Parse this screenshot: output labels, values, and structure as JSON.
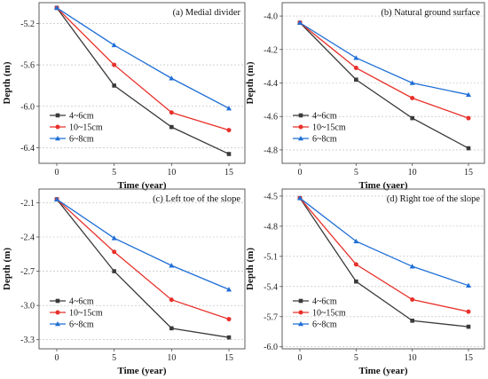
{
  "colors": {
    "series_4_6": "#3a3a3a",
    "series_10_15": "#e8302a",
    "series_6_8": "#1f6fd6",
    "frame": "#4d4d4d",
    "grid": "#b8b8b8"
  },
  "chart_data": [
    {
      "type": "line",
      "title": "(a) Medial divider",
      "xlabel": "Time (year)",
      "ylabel": "Depth (m)",
      "x": [
        0,
        5,
        10,
        15
      ],
      "xticks": [
        "0",
        "5",
        "10",
        "15"
      ],
      "ylim": [
        -6.55,
        -5.0
      ],
      "yticks": [
        "-5.2",
        "-5.6",
        "-6.0",
        "-6.4"
      ],
      "ytick_values": [
        -5.2,
        -5.6,
        -6.0,
        -6.4
      ],
      "grid": "horizontal dashed",
      "legend_position": "bottom-left",
      "series": [
        {
          "name": "4~6cm",
          "marker": "square",
          "values": [
            -5.05,
            -5.8,
            -6.2,
            -6.46
          ]
        },
        {
          "name": "10~15cm",
          "marker": "circle",
          "values": [
            -5.05,
            -5.6,
            -6.06,
            -6.23
          ]
        },
        {
          "name": "6~8cm",
          "marker": "triangle",
          "values": [
            -5.05,
            -5.41,
            -5.73,
            -6.02
          ]
        }
      ]
    },
    {
      "type": "line",
      "title": "(b) Natural ground surface",
      "xlabel": "Time (yaer)",
      "ylabel": "Depth (m)",
      "x": [
        0,
        5,
        10,
        15
      ],
      "xticks": [
        "0",
        "5",
        "10",
        "15"
      ],
      "ylim": [
        -4.88,
        -3.92
      ],
      "yticks": [
        "-4.0",
        "-4.2",
        "-4.4",
        "-4.6",
        "-4.8"
      ],
      "ytick_values": [
        -4.0,
        -4.2,
        -4.4,
        -4.6,
        -4.8
      ],
      "grid": "horizontal dashed",
      "legend_position": "bottom-left",
      "series": [
        {
          "name": "4~6cm",
          "marker": "square",
          "values": [
            -4.04,
            -4.38,
            -4.61,
            -4.79
          ]
        },
        {
          "name": "10~15cm",
          "marker": "circle",
          "values": [
            -4.04,
            -4.31,
            -4.49,
            -4.61
          ]
        },
        {
          "name": "6~8cm",
          "marker": "triangle",
          "values": [
            -4.04,
            -4.25,
            -4.4,
            -4.47
          ]
        }
      ]
    },
    {
      "type": "line",
      "title": "(c) Left toe of the slope",
      "xlabel": "Time (year)",
      "ylabel": "Depth (m)",
      "x": [
        0,
        5,
        10,
        15
      ],
      "xticks": [
        "0",
        "5",
        "10",
        "15"
      ],
      "ylim": [
        -3.38,
        -1.98
      ],
      "yticks": [
        "-2.1",
        "-2.4",
        "-2.7",
        "-3.0",
        "-3.3"
      ],
      "ytick_values": [
        -2.1,
        -2.4,
        -2.7,
        -3.0,
        -3.3
      ],
      "grid": "horizontal dashed",
      "legend_position": "bottom-left",
      "series": [
        {
          "name": "4~6cm",
          "marker": "square",
          "values": [
            -2.07,
            -2.7,
            -3.2,
            -3.28
          ]
        },
        {
          "name": "10~15cm",
          "marker": "circle",
          "values": [
            -2.07,
            -2.53,
            -2.95,
            -3.12
          ]
        },
        {
          "name": "6~8cm",
          "marker": "triangle",
          "values": [
            -2.07,
            -2.41,
            -2.65,
            -2.86
          ]
        }
      ]
    },
    {
      "type": "line",
      "title": "(d) Right toe of the slope",
      "xlabel": "Time (year)",
      "ylabel": "Depth (m)",
      "x": [
        0,
        5,
        10,
        15
      ],
      "xticks": [
        "0",
        "5",
        "10",
        "15"
      ],
      "ylim": [
        -6.02,
        -4.43
      ],
      "yticks": [
        "-4.5",
        "-4.8",
        "-5.1",
        "-5.4",
        "-5.7",
        "-6.0"
      ],
      "ytick_values": [
        -4.5,
        -4.8,
        -5.1,
        -5.4,
        -5.7,
        -6.0
      ],
      "grid": "horizontal dashed",
      "legend_position": "bottom-left",
      "series": [
        {
          "name": "4~6cm",
          "marker": "square",
          "values": [
            -4.52,
            -5.35,
            -5.74,
            -5.8
          ]
        },
        {
          "name": "10~15cm",
          "marker": "circle",
          "values": [
            -4.52,
            -5.18,
            -5.53,
            -5.65
          ]
        },
        {
          "name": "6~8cm",
          "marker": "triangle",
          "values": [
            -4.52,
            -4.95,
            -5.2,
            -5.39
          ]
        }
      ]
    }
  ]
}
